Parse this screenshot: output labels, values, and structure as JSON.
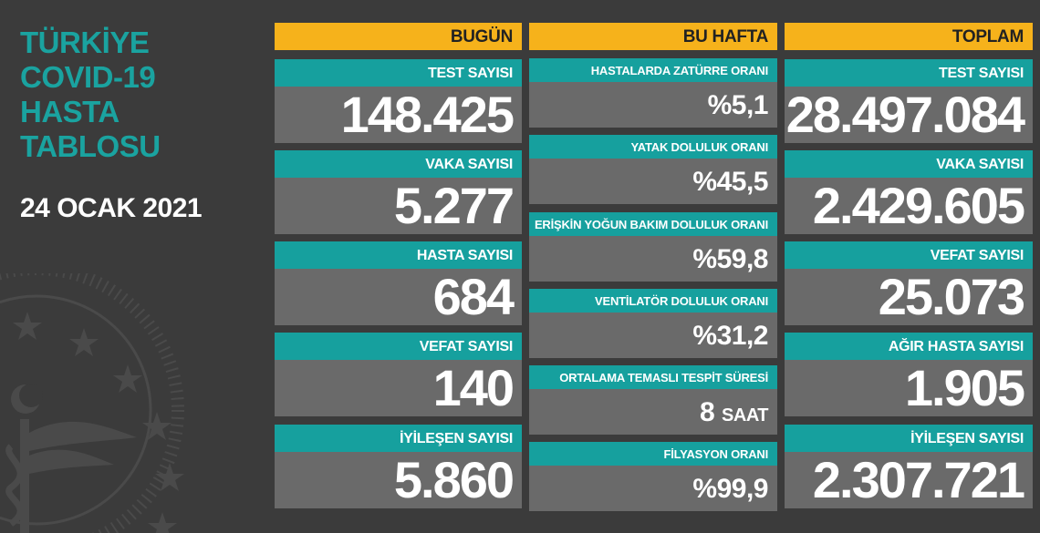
{
  "title_lines": [
    "TÜRKİYE",
    "COVID-19",
    "HASTA",
    "TABLOSU"
  ],
  "date": "24 OCAK 2021",
  "today": {
    "header": "BUGÜN",
    "items": [
      {
        "label": "TEST SAYISI",
        "value": "148.425"
      },
      {
        "label": "VAKA SAYISI",
        "value": "5.277"
      },
      {
        "label": "HASTA SAYISI",
        "value": "684"
      },
      {
        "label": "VEFAT SAYISI",
        "value": "140"
      },
      {
        "label": "İYİLEŞEN SAYISI",
        "value": "5.860"
      }
    ]
  },
  "week": {
    "header": "BU HAFTA",
    "items": [
      {
        "label": "HASTALARDA ZATÜRRE ORANI",
        "value": "%5,1"
      },
      {
        "label": "YATAK DOLULUK ORANI",
        "value": "%45,5"
      },
      {
        "label": "ERİŞKİN YOĞUN BAKIM DOLULUK ORANI",
        "value": "%59,8"
      },
      {
        "label": "VENTİLATÖR DOLULUK ORANI",
        "value": "%31,2"
      },
      {
        "label": "ORTALAMA TEMASLI TESPİT SÜRESİ",
        "value": "8",
        "unit": "SAAT"
      },
      {
        "label": "FİLYASYON ORANI",
        "value": "%99,9"
      }
    ]
  },
  "total": {
    "header": "TOPLAM",
    "items": [
      {
        "label": "TEST SAYISI",
        "value": "28.497.084"
      },
      {
        "label": "VAKA SAYISI",
        "value": "2.429.605"
      },
      {
        "label": "VEFAT SAYISI",
        "value": "25.073"
      },
      {
        "label": "AĞIR HASTA SAYISI",
        "value": "1.905"
      },
      {
        "label": "İYİLEŞEN SAYISI",
        "value": "2.307.721"
      }
    ]
  },
  "colors": {
    "background": "#3b3b3b",
    "header_yellow": "#f6b21b",
    "label_teal": "#16a09e",
    "value_grey": "#6a6a6a",
    "title_teal": "#1aa3a0"
  },
  "icons": [
    "ministry-emblem-icon"
  ]
}
